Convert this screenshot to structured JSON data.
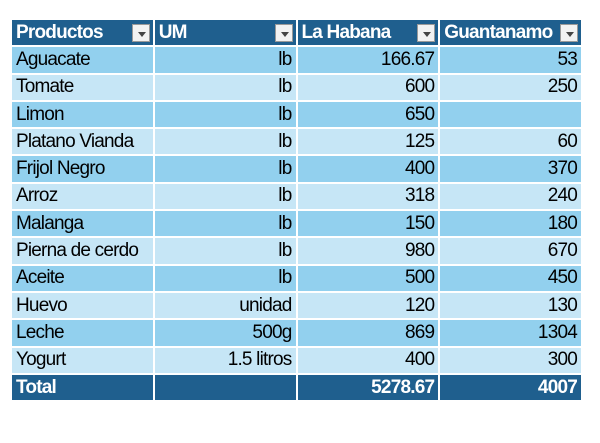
{
  "table": {
    "header": [
      "Productos",
      "UM",
      "La Habana",
      "Guantanamo"
    ],
    "rows": [
      [
        "Aguacate",
        "lb",
        166.67,
        53
      ],
      [
        "Tomate",
        "lb",
        600,
        250
      ],
      [
        "Limon",
        "lb",
        650,
        null
      ],
      [
        "Platano Vianda",
        "lb",
        125,
        60
      ],
      [
        "Frijol Negro",
        "lb",
        400,
        370
      ],
      [
        "Arroz",
        "lb",
        318,
        240
      ],
      [
        "Malanga",
        "lb",
        150,
        180
      ],
      [
        "Pierna de cerdo",
        "lb",
        980,
        670
      ],
      [
        "Aceite",
        "lb",
        500,
        450
      ],
      [
        "Huevo",
        "unidad",
        120,
        130
      ],
      [
        "Leche",
        "500g",
        869,
        1304
      ],
      [
        "Yogurt",
        "1.5 litros",
        400,
        300
      ]
    ],
    "total": {
      "label": "Total",
      "values": [
        5278.67,
        4007
      ]
    }
  }
}
